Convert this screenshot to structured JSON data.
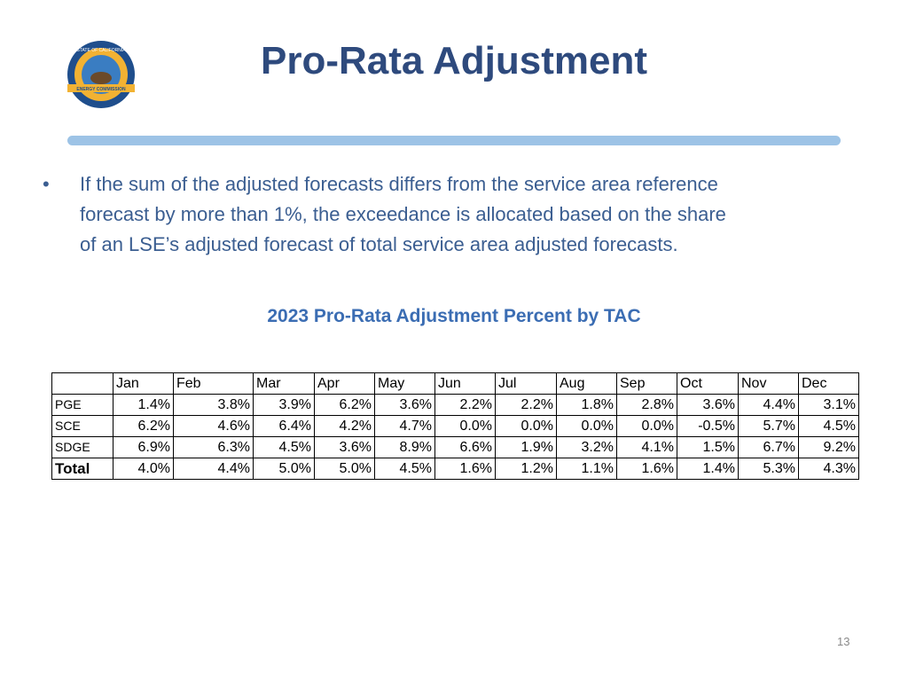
{
  "header": {
    "title": "Pro-Rata Adjustment",
    "logo": {
      "top_text": "STATE OF CALIFORNIA",
      "bottom_text": "ENERGY COMMISSION"
    }
  },
  "bullet": {
    "lines": [
      "If the sum of the adjusted forecasts differs from the service area reference",
      "forecast by more than 1%, the exceedance is allocated based on the share",
      "of an LSE’s adjusted forecast of total service area adjusted forecasts."
    ]
  },
  "table": {
    "title": "2023 Pro-Rata Adjustment Percent by TAC",
    "columns": [
      "Jan",
      "Feb",
      "Mar",
      "Apr",
      "May",
      "Jun",
      "Jul",
      "Aug",
      "Sep",
      "Oct",
      "Nov",
      "Dec"
    ],
    "rows": [
      {
        "label": "PGE",
        "values": [
          "1.4%",
          "3.8%",
          "3.9%",
          "6.2%",
          "3.6%",
          "2.2%",
          "2.2%",
          "1.8%",
          "2.8%",
          "3.6%",
          "4.4%",
          "3.1%"
        ]
      },
      {
        "label": "SCE",
        "values": [
          "6.2%",
          "4.6%",
          "6.4%",
          "4.2%",
          "4.7%",
          "0.0%",
          "0.0%",
          "0.0%",
          "0.0%",
          "-0.5%",
          "5.7%",
          "4.5%"
        ]
      },
      {
        "label": "SDGE",
        "values": [
          "6.9%",
          "6.3%",
          "4.5%",
          "3.6%",
          "8.9%",
          "6.6%",
          "1.9%",
          "3.2%",
          "4.1%",
          "1.5%",
          "6.7%",
          "9.2%"
        ]
      },
      {
        "label": "Total",
        "values": [
          "4.0%",
          "4.4%",
          "5.0%",
          "5.0%",
          "4.5%",
          "1.6%",
          "1.2%",
          "1.1%",
          "1.6%",
          "1.4%",
          "5.3%",
          "4.3%"
        ]
      }
    ]
  },
  "footer": {
    "page_number": "13"
  }
}
